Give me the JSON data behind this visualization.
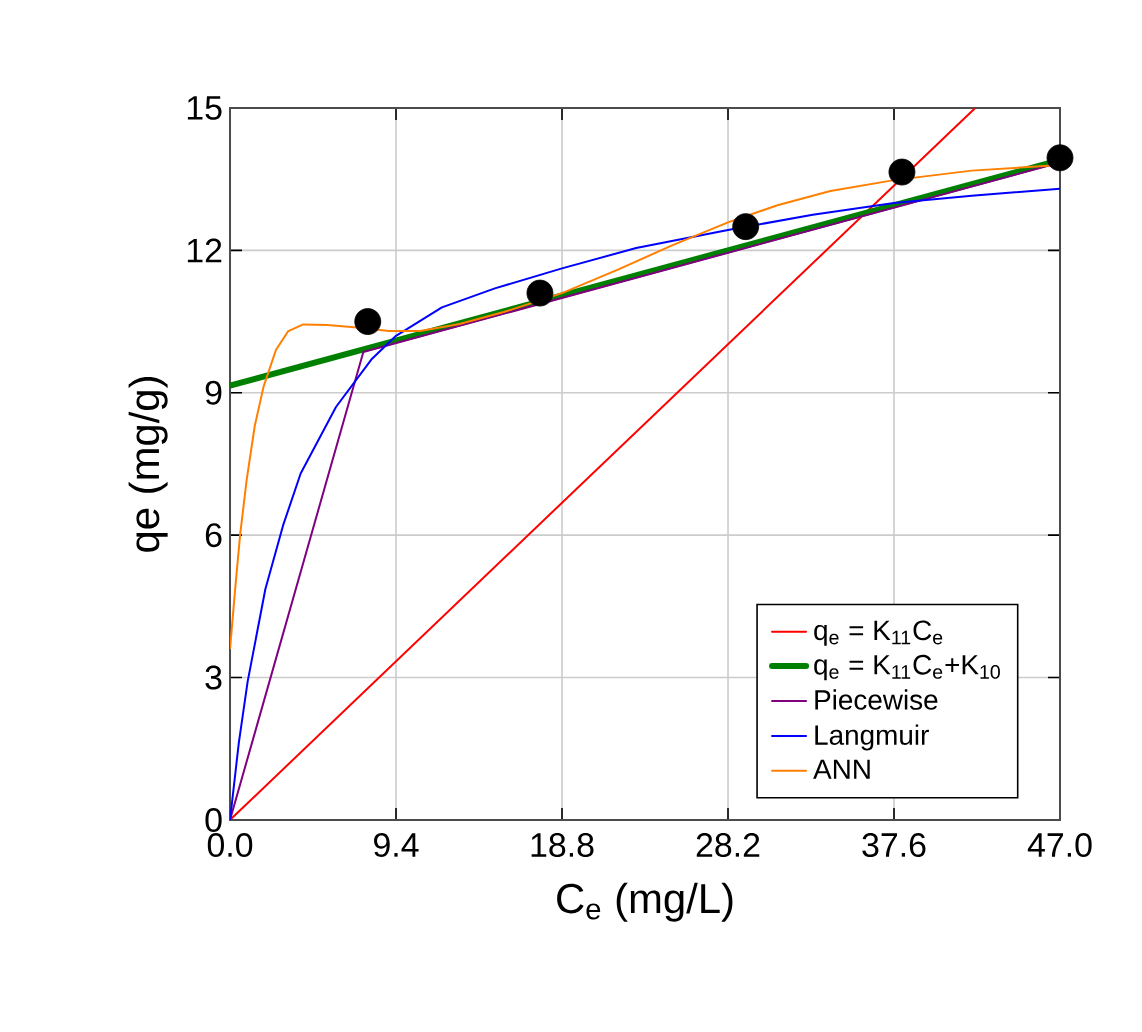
{
  "chart_data": {
    "type": "line",
    "xlabel": "C$_{e}$ (mg/L)",
    "ylabel": "qe (mg/g)",
    "xlim": [
      0,
      47
    ],
    "ylim": [
      0,
      15
    ],
    "xticks": [
      {
        "value": 0,
        "label": "0.0"
      },
      9.4,
      18.8,
      28.2,
      37.6,
      {
        "value": 47,
        "label": "47.0"
      }
    ],
    "yticks": [
      0,
      3,
      6,
      9,
      12,
      15
    ],
    "grid": true,
    "legend": "bottom right",
    "series": [
      {
        "name": "q$_{e}$ = K$_{11}$C$_{e}$",
        "color": "#ff0000",
        "x": [
          0,
          42.2
        ],
        "values": [
          0,
          15
        ]
      },
      {
        "name": "q$_{e}$ = K$_{11}$C$_{e}$+K$_{10}$",
        "color": "#008000",
        "x": [
          0,
          47
        ],
        "values": [
          9.15,
          13.9
        ]
      },
      {
        "name": "Piecewise",
        "color": "#800080",
        "x": [
          0,
          7.55,
          47
        ],
        "values": [
          0,
          9.86,
          13.85
        ]
      },
      {
        "name": "Langmuir",
        "color": "#0000ff",
        "x": [
          0,
          0.5,
          1,
          2,
          3,
          4,
          6,
          8,
          9.4,
          12,
          15,
          18.8,
          23,
          28.2,
          33,
          37.6,
          42,
          47
        ],
        "values": [
          0,
          1.63,
          2.92,
          4.86,
          6.2,
          7.3,
          8.7,
          9.7,
          10.2,
          10.8,
          11.2,
          11.62,
          12.05,
          12.43,
          12.75,
          13.0,
          13.15,
          13.3
        ]
      },
      {
        "name": "ANN",
        "color": "#ff8000",
        "x": [
          0,
          0.3,
          0.57,
          0.94,
          1.4,
          1.9,
          2.6,
          3.3,
          4.15,
          5.5,
          7.36,
          9,
          10.76,
          13,
          15.5,
          18.8,
          22,
          25,
          28.2,
          31,
          34,
          37.6,
          42,
          47
        ],
        "values": [
          3.6,
          4.9,
          6,
          7.16,
          8.3,
          9.13,
          9.9,
          10.3,
          10.44,
          10.43,
          10.37,
          10.3,
          10.3,
          10.45,
          10.7,
          11.1,
          11.6,
          12.1,
          12.59,
          12.95,
          13.25,
          13.48,
          13.68,
          13.8
        ]
      },
      {
        "type": "scatter",
        "color": "#000000",
        "marker": "circle",
        "x": [
          7.8,
          17.55,
          29.2,
          38.05,
          47
        ],
        "values": [
          10.5,
          11.1,
          12.5,
          13.65,
          13.95
        ]
      }
    ]
  }
}
